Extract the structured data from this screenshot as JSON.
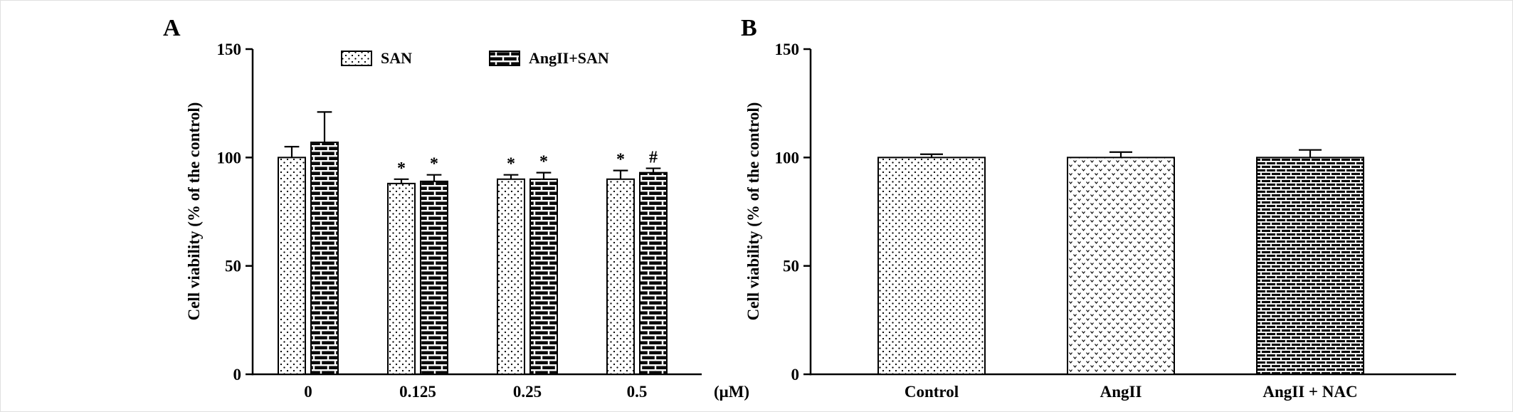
{
  "figure": {
    "background": "#ffffff",
    "ink": "#000000"
  },
  "chart_data": [
    {
      "type": "bar",
      "panel": "A",
      "title": "",
      "ylabel": "Cell viability (% of the control)",
      "ylim": [
        0,
        150
      ],
      "yticks": [
        0,
        50,
        100,
        150
      ],
      "grid": false,
      "legend_position": "top",
      "categories": [
        "0",
        "0.125",
        "0.25",
        "0.5"
      ],
      "x_unit_label": "(μM)",
      "series": [
        {
          "name": "SAN",
          "pattern": "dots",
          "values": [
            100,
            88,
            90,
            90
          ],
          "errors": [
            5,
            2,
            2,
            4
          ],
          "annotations": [
            "",
            "*",
            "*",
            "*"
          ]
        },
        {
          "name": "AngII+SAN",
          "pattern": "bricks",
          "values": [
            107,
            89,
            90,
            93
          ],
          "errors": [
            14,
            3,
            3,
            2
          ],
          "annotations": [
            "",
            "*",
            "*",
            "#"
          ]
        }
      ]
    },
    {
      "type": "bar",
      "panel": "B",
      "title": "",
      "ylabel": "Cell viability (% of the control)",
      "ylim": [
        0,
        150
      ],
      "yticks": [
        0,
        50,
        100,
        150
      ],
      "grid": false,
      "categories": [
        "Control",
        "AngII",
        "AngII + NAC"
      ],
      "series": [
        {
          "name": "Cell viability",
          "patterns": [
            "dots",
            "checks",
            "densebricks"
          ],
          "values": [
            100,
            100,
            100
          ],
          "errors": [
            1.5,
            2.5,
            3.5
          ],
          "annotations": [
            "",
            "",
            ""
          ]
        }
      ]
    }
  ]
}
